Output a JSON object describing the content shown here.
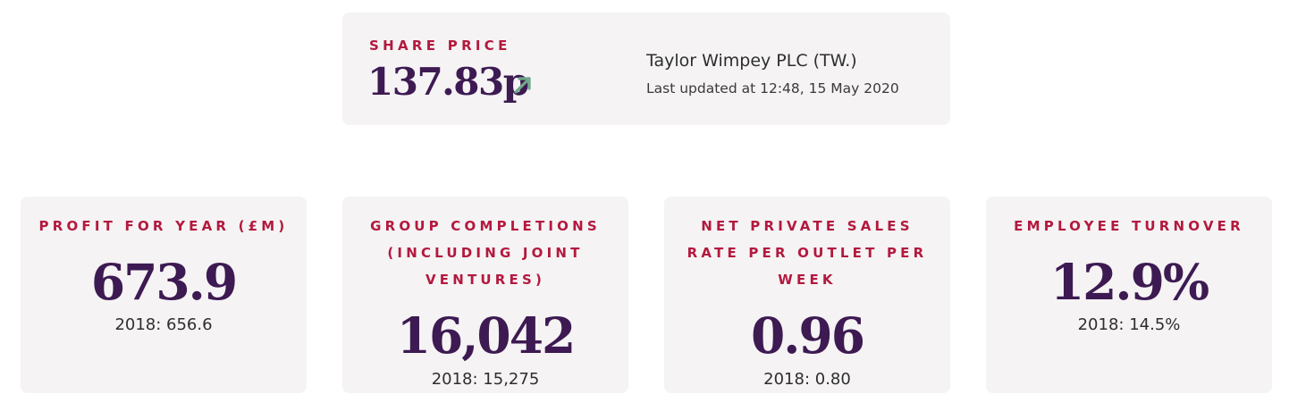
{
  "share": {
    "label": "SHARE PRICE",
    "price": "137.83p",
    "trend_icon": "arrow-up-right-icon",
    "company": "Taylor Wimpey PLC (TW.)",
    "updated": "Last updated at 12:48, 15 May 2020"
  },
  "kpis": [
    {
      "title": "PROFIT FOR YEAR (£M)",
      "value": "673.9",
      "previous": "2018: 656.6"
    },
    {
      "title": "GROUP COMPLETIONS (INCLUDING JOINT VENTURES)",
      "value": "16,042",
      "previous": "2018: 15,275"
    },
    {
      "title": "NET PRIVATE SALES RATE PER OUTLET PER WEEK",
      "value": "0.96",
      "previous": "2018: 0.80"
    },
    {
      "title": "EMPLOYEE TURNOVER",
      "value": "12.9%",
      "previous": "2018: 14.5%"
    }
  ],
  "colors": {
    "label_red": "#b3193e",
    "value_purple": "#3d1a52",
    "arrow_green": "#6fa88a",
    "card_bg": "#f5f3f4"
  }
}
